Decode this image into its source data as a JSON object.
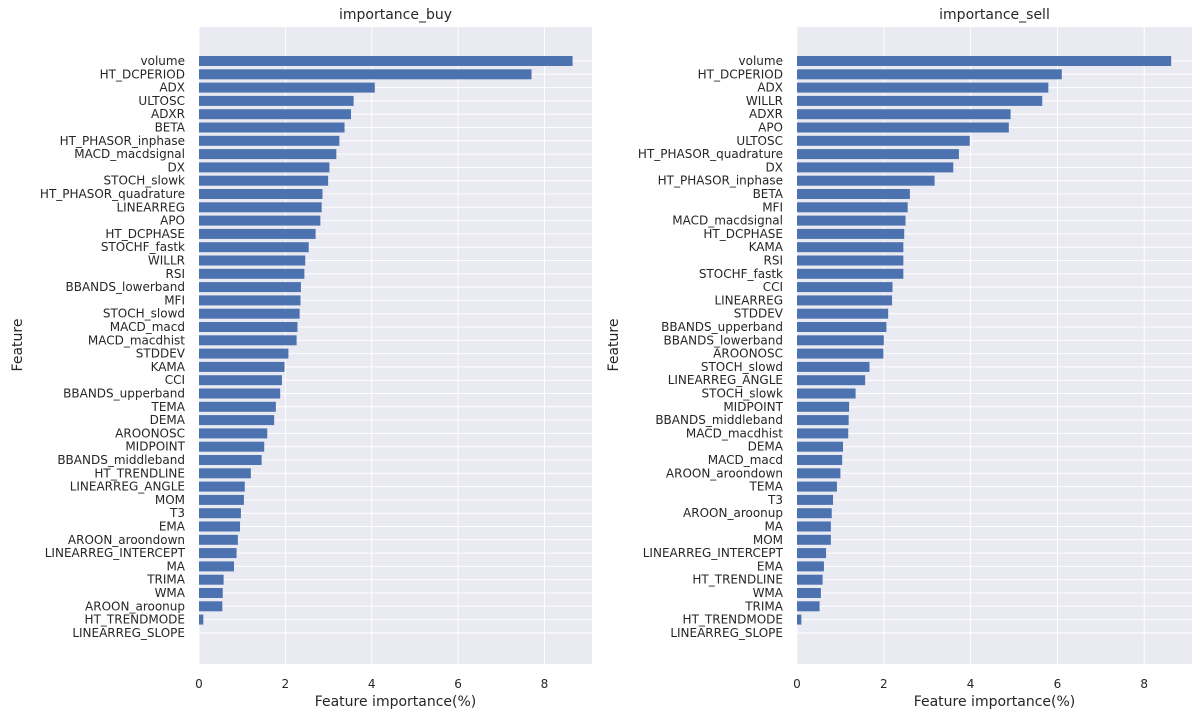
{
  "chart_data": [
    {
      "type": "bar",
      "orientation": "horizontal",
      "title": "importance_buy",
      "xlabel": "Feature importance(%)",
      "ylabel": "Feature",
      "xlim": [
        0,
        9.1
      ],
      "xticks": [
        0,
        2,
        4,
        6,
        8
      ],
      "grid": true,
      "categories": [
        "volume",
        "HT_DCPERIOD",
        "ADX",
        "ULTOSC",
        "ADXR",
        "BETA",
        "HT_PHASOR_inphase",
        "MACD_macdsignal",
        "DX",
        "STOCH_slowk",
        "HT_PHASOR_quadrature",
        "LINEARREG",
        "APO",
        "HT_DCPHASE",
        "STOCHF_fastk",
        "WILLR",
        "RSI",
        "BBANDS_lowerband",
        "MFI",
        "STOCH_slowd",
        "MACD_macd",
        "MACD_macdhist",
        "STDDEV",
        "KAMA",
        "CCI",
        "BBANDS_upperband",
        "TEMA",
        "DEMA",
        "AROONOSC",
        "MIDPOINT",
        "BBANDS_middleband",
        "HT_TRENDLINE",
        "LINEARREG_ANGLE",
        "MOM",
        "T3",
        "EMA",
        "AROON_aroondown",
        "LINEARREG_INTERCEPT",
        "MA",
        "TRIMA",
        "WMA",
        "AROON_aroonup",
        "HT_TRENDMODE",
        "LINEARREG_SLOPE"
      ],
      "values": [
        8.65,
        7.7,
        4.07,
        3.58,
        3.52,
        3.37,
        3.25,
        3.18,
        3.02,
        2.99,
        2.86,
        2.84,
        2.81,
        2.7,
        2.54,
        2.46,
        2.44,
        2.36,
        2.35,
        2.33,
        2.28,
        2.26,
        2.07,
        1.98,
        1.92,
        1.88,
        1.78,
        1.74,
        1.58,
        1.51,
        1.45,
        1.2,
        1.06,
        1.04,
        0.97,
        0.95,
        0.9,
        0.87,
        0.81,
        0.57,
        0.55,
        0.54,
        0.1,
        0.0
      ]
    },
    {
      "type": "bar",
      "orientation": "horizontal",
      "title": "importance_sell",
      "xlabel": "Feature importance(%)",
      "ylabel": "Feature",
      "xlim": [
        0,
        9.1
      ],
      "xticks": [
        0,
        2,
        4,
        6,
        8
      ],
      "grid": true,
      "categories": [
        "volume",
        "HT_DCPERIOD",
        "ADX",
        "WILLR",
        "ADXR",
        "APO",
        "ULTOSC",
        "HT_PHASOR_quadrature",
        "DX",
        "HT_PHASOR_inphase",
        "BETA",
        "MFI",
        "MACD_macdsignal",
        "HT_DCPHASE",
        "KAMA",
        "RSI",
        "STOCHF_fastk",
        "CCI",
        "LINEARREG",
        "STDDEV",
        "BBANDS_upperband",
        "BBANDS_lowerband",
        "AROONOSC",
        "STOCH_slowd",
        "LINEARREG_ANGLE",
        "STOCH_slowk",
        "MIDPOINT",
        "BBANDS_middleband",
        "MACD_macdhist",
        "DEMA",
        "MACD_macd",
        "AROON_aroondown",
        "TEMA",
        "T3",
        "AROON_aroonup",
        "MA",
        "MOM",
        "LINEARREG_INTERCEPT",
        "EMA",
        "HT_TRENDLINE",
        "WMA",
        "TRIMA",
        "HT_TRENDMODE",
        "LINEARREG_SLOPE"
      ],
      "values": [
        8.62,
        6.1,
        5.79,
        5.65,
        4.92,
        4.88,
        3.98,
        3.73,
        3.6,
        3.17,
        2.6,
        2.55,
        2.5,
        2.47,
        2.45,
        2.45,
        2.45,
        2.2,
        2.19,
        2.1,
        2.06,
        2.0,
        1.99,
        1.67,
        1.57,
        1.35,
        1.2,
        1.19,
        1.18,
        1.06,
        1.04,
        1.0,
        0.92,
        0.83,
        0.8,
        0.78,
        0.78,
        0.67,
        0.62,
        0.59,
        0.55,
        0.52,
        0.1,
        0.0
      ]
    }
  ]
}
